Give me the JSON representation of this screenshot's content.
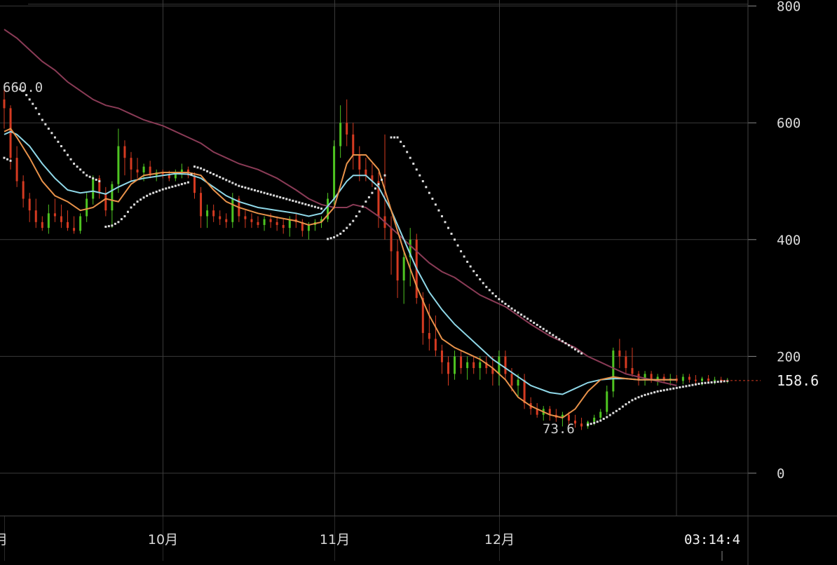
{
  "chart_data": {
    "type": "candlestick",
    "yticks": [
      0,
      200,
      400,
      600,
      800
    ],
    "ylim": [
      0,
      800
    ],
    "xticks": [
      {
        "label": "月",
        "i": 0
      },
      {
        "label": "10月",
        "i": 25
      },
      {
        "label": "11月",
        "i": 52
      },
      {
        "label": "12月",
        "i": 78
      }
    ],
    "time_label": "03:14:4",
    "last_price": "158.6",
    "max_label": "660.0",
    "min_label": "73.6",
    "colors": {
      "up": "#4ec421",
      "down": "#d53a21",
      "ma_short": "#e8924a",
      "ma_mid": "#8fd8e8",
      "ma_long": "#8a3b56",
      "sar": "#dcdcdc",
      "grid": "#3a3a3a"
    },
    "ohlc": [
      [
        640,
        660,
        590,
        625
      ],
      [
        625,
        630,
        520,
        540
      ],
      [
        540,
        560,
        490,
        500
      ],
      [
        500,
        510,
        455,
        470
      ],
      [
        470,
        480,
        430,
        450
      ],
      [
        450,
        470,
        420,
        430
      ],
      [
        430,
        440,
        415,
        420
      ],
      [
        420,
        460,
        410,
        445
      ],
      [
        445,
        470,
        430,
        440
      ],
      [
        440,
        460,
        420,
        430
      ],
      [
        430,
        450,
        415,
        420
      ],
      [
        420,
        440,
        410,
        415
      ],
      [
        415,
        445,
        410,
        440
      ],
      [
        440,
        480,
        430,
        470
      ],
      [
        470,
        510,
        460,
        505
      ],
      [
        505,
        510,
        470,
        480
      ],
      [
        480,
        490,
        440,
        450
      ],
      [
        450,
        500,
        420,
        495
      ],
      [
        495,
        590,
        480,
        560
      ],
      [
        560,
        570,
        510,
        540
      ],
      [
        540,
        550,
        500,
        520
      ],
      [
        520,
        540,
        505,
        515
      ],
      [
        515,
        530,
        500,
        525
      ],
      [
        525,
        535,
        505,
        510
      ],
      [
        510,
        520,
        500,
        515
      ],
      [
        515,
        520,
        505,
        512
      ],
      [
        512,
        518,
        500,
        505
      ],
      [
        505,
        520,
        500,
        515
      ],
      [
        515,
        530,
        505,
        520
      ],
      [
        520,
        525,
        505,
        510
      ],
      [
        510,
        515,
        470,
        480
      ],
      [
        480,
        490,
        420,
        440
      ],
      [
        440,
        460,
        420,
        450
      ],
      [
        450,
        460,
        430,
        440
      ],
      [
        440,
        450,
        425,
        435
      ],
      [
        435,
        445,
        420,
        430
      ],
      [
        430,
        480,
        420,
        470
      ],
      [
        470,
        475,
        430,
        440
      ],
      [
        440,
        450,
        420,
        435
      ],
      [
        435,
        445,
        420,
        430
      ],
      [
        430,
        440,
        420,
        425
      ],
      [
        425,
        440,
        415,
        435
      ],
      [
        435,
        445,
        420,
        430
      ],
      [
        430,
        440,
        415,
        425
      ],
      [
        425,
        435,
        410,
        420
      ],
      [
        420,
        440,
        405,
        435
      ],
      [
        435,
        445,
        420,
        430
      ],
      [
        430,
        435,
        405,
        415
      ],
      [
        415,
        430,
        400,
        425
      ],
      [
        425,
        435,
        415,
        430
      ],
      [
        430,
        440,
        420,
        435
      ],
      [
        435,
        480,
        430,
        470
      ],
      [
        470,
        570,
        460,
        560
      ],
      [
        560,
        630,
        540,
        600
      ],
      [
        600,
        640,
        560,
        580
      ],
      [
        580,
        600,
        520,
        545
      ],
      [
        545,
        560,
        500,
        520
      ],
      [
        520,
        540,
        500,
        510
      ],
      [
        510,
        530,
        490,
        500
      ],
      [
        500,
        515,
        420,
        440
      ],
      [
        440,
        580,
        400,
        420
      ],
      [
        420,
        440,
        340,
        380
      ],
      [
        380,
        400,
        300,
        330
      ],
      [
        330,
        380,
        290,
        370
      ],
      [
        370,
        420,
        320,
        400
      ],
      [
        400,
        410,
        290,
        300
      ],
      [
        300,
        310,
        220,
        240
      ],
      [
        240,
        290,
        210,
        230
      ],
      [
        230,
        270,
        200,
        210
      ],
      [
        210,
        220,
        170,
        190
      ],
      [
        190,
        200,
        150,
        170
      ],
      [
        170,
        210,
        160,
        200
      ],
      [
        200,
        210,
        170,
        180
      ],
      [
        180,
        200,
        160,
        190
      ],
      [
        190,
        200,
        170,
        180
      ],
      [
        180,
        200,
        160,
        190
      ],
      [
        190,
        200,
        170,
        180
      ],
      [
        180,
        200,
        150,
        170
      ],
      [
        170,
        210,
        150,
        200
      ],
      [
        200,
        210,
        160,
        170
      ],
      [
        170,
        180,
        140,
        150
      ],
      [
        150,
        170,
        130,
        160
      ],
      [
        160,
        170,
        110,
        120
      ],
      [
        120,
        130,
        100,
        110
      ],
      [
        110,
        120,
        95,
        100
      ],
      [
        100,
        115,
        90,
        110
      ],
      [
        110,
        115,
        90,
        100
      ],
      [
        100,
        110,
        88,
        95
      ],
      [
        95,
        105,
        80,
        100
      ],
      [
        100,
        105,
        80,
        90
      ],
      [
        90,
        100,
        78,
        85
      ],
      [
        85,
        95,
        74,
        80
      ],
      [
        80,
        90,
        76,
        88
      ],
      [
        88,
        100,
        82,
        95
      ],
      [
        95,
        110,
        90,
        105
      ],
      [
        105,
        150,
        100,
        140
      ],
      [
        140,
        215,
        130,
        210
      ],
      [
        210,
        230,
        180,
        200
      ],
      [
        200,
        210,
        170,
        180
      ],
      [
        180,
        215,
        165,
        170
      ],
      [
        170,
        175,
        150,
        160
      ],
      [
        160,
        175,
        150,
        170
      ],
      [
        170,
        175,
        155,
        160
      ],
      [
        160,
        170,
        150,
        165
      ],
      [
        165,
        170,
        155,
        160
      ],
      [
        160,
        170,
        150,
        162
      ],
      [
        162,
        168,
        155,
        158
      ],
      [
        158,
        170,
        152,
        165
      ],
      [
        165,
        170,
        155,
        160
      ],
      [
        160,
        168,
        152,
        158
      ],
      [
        158,
        165,
        150,
        162
      ],
      [
        162,
        168,
        155,
        158
      ],
      [
        158,
        165,
        152,
        160
      ],
      [
        160,
        165,
        154,
        158
      ],
      [
        158,
        163,
        154,
        158.6
      ]
    ],
    "ma_short": [
      [
        0,
        585
      ],
      [
        1,
        590
      ],
      [
        2,
        575
      ],
      [
        4,
        540
      ],
      [
        6,
        500
      ],
      [
        8,
        475
      ],
      [
        10,
        465
      ],
      [
        12,
        450
      ],
      [
        14,
        455
      ],
      [
        16,
        470
      ],
      [
        18,
        465
      ],
      [
        20,
        495
      ],
      [
        22,
        510
      ],
      [
        25,
        515
      ],
      [
        27,
        515
      ],
      [
        29,
        515
      ],
      [
        31,
        510
      ],
      [
        33,
        485
      ],
      [
        35,
        465
      ],
      [
        37,
        455
      ],
      [
        40,
        445
      ],
      [
        43,
        438
      ],
      [
        46,
        432
      ],
      [
        48,
        425
      ],
      [
        50,
        430
      ],
      [
        52,
        455
      ],
      [
        54,
        530
      ],
      [
        55,
        545
      ],
      [
        57,
        545
      ],
      [
        59,
        520
      ],
      [
        61,
        450
      ],
      [
        63,
        380
      ],
      [
        65,
        320
      ],
      [
        67,
        270
      ],
      [
        69,
        230
      ],
      [
        71,
        215
      ],
      [
        73,
        205
      ],
      [
        75,
        195
      ],
      [
        77,
        180
      ],
      [
        79,
        160
      ],
      [
        81,
        130
      ],
      [
        83,
        115
      ],
      [
        86,
        100
      ],
      [
        88,
        95
      ],
      [
        90,
        110
      ],
      [
        92,
        140
      ],
      [
        94,
        160
      ],
      [
        96,
        165
      ],
      [
        98,
        162
      ],
      [
        100,
        160
      ],
      [
        102,
        160
      ],
      [
        104,
        160
      ],
      [
        106,
        160
      ]
    ],
    "ma_mid": [
      [
        0,
        580
      ],
      [
        1,
        585
      ],
      [
        2,
        580
      ],
      [
        4,
        560
      ],
      [
        6,
        530
      ],
      [
        8,
        505
      ],
      [
        10,
        485
      ],
      [
        12,
        480
      ],
      [
        14,
        483
      ],
      [
        16,
        478
      ],
      [
        18,
        490
      ],
      [
        20,
        500
      ],
      [
        22,
        505
      ],
      [
        25,
        510
      ],
      [
        27,
        513
      ],
      [
        29,
        512
      ],
      [
        31,
        505
      ],
      [
        33,
        490
      ],
      [
        35,
        475
      ],
      [
        37,
        465
      ],
      [
        40,
        455
      ],
      [
        43,
        450
      ],
      [
        46,
        445
      ],
      [
        48,
        440
      ],
      [
        50,
        445
      ],
      [
        52,
        470
      ],
      [
        54,
        500
      ],
      [
        55,
        510
      ],
      [
        57,
        510
      ],
      [
        59,
        490
      ],
      [
        61,
        450
      ],
      [
        63,
        400
      ],
      [
        65,
        350
      ],
      [
        67,
        310
      ],
      [
        69,
        280
      ],
      [
        71,
        255
      ],
      [
        73,
        235
      ],
      [
        75,
        215
      ],
      [
        77,
        195
      ],
      [
        79,
        180
      ],
      [
        81,
        165
      ],
      [
        83,
        150
      ],
      [
        86,
        138
      ],
      [
        88,
        135
      ],
      [
        90,
        145
      ],
      [
        92,
        155
      ],
      [
        94,
        160
      ],
      [
        96,
        162
      ],
      [
        98,
        162
      ],
      [
        100,
        160
      ],
      [
        102,
        160
      ],
      [
        104,
        160
      ],
      [
        106,
        160
      ]
    ],
    "ma_long": [
      [
        0,
        760
      ],
      [
        2,
        745
      ],
      [
        4,
        725
      ],
      [
        6,
        705
      ],
      [
        8,
        690
      ],
      [
        10,
        670
      ],
      [
        12,
        655
      ],
      [
        14,
        640
      ],
      [
        16,
        630
      ],
      [
        18,
        625
      ],
      [
        20,
        615
      ],
      [
        22,
        605
      ],
      [
        25,
        595
      ],
      [
        27,
        585
      ],
      [
        29,
        575
      ],
      [
        31,
        565
      ],
      [
        33,
        550
      ],
      [
        35,
        540
      ],
      [
        37,
        530
      ],
      [
        40,
        520
      ],
      [
        43,
        505
      ],
      [
        46,
        485
      ],
      [
        48,
        470
      ],
      [
        50,
        460
      ],
      [
        52,
        455
      ],
      [
        54,
        455
      ],
      [
        55,
        460
      ],
      [
        57,
        455
      ],
      [
        59,
        440
      ],
      [
        61,
        420
      ],
      [
        63,
        400
      ],
      [
        65,
        380
      ],
      [
        67,
        360
      ],
      [
        69,
        345
      ],
      [
        71,
        335
      ],
      [
        73,
        320
      ],
      [
        75,
        305
      ],
      [
        77,
        295
      ],
      [
        79,
        285
      ],
      [
        81,
        270
      ],
      [
        83,
        255
      ],
      [
        86,
        235
      ],
      [
        88,
        225
      ],
      [
        90,
        215
      ],
      [
        92,
        200
      ],
      [
        94,
        190
      ],
      [
        96,
        180
      ],
      [
        98,
        170
      ],
      [
        100,
        165
      ],
      [
        102,
        160
      ],
      [
        104,
        155
      ],
      [
        106,
        150
      ]
    ],
    "sar": [
      [
        0,
        540
      ],
      [
        1,
        535
      ],
      [
        2,
        660
      ],
      [
        3,
        655
      ],
      [
        4,
        640
      ],
      [
        5,
        625
      ],
      [
        6,
        605
      ],
      [
        7,
        590
      ],
      [
        8,
        575
      ],
      [
        9,
        560
      ],
      [
        10,
        545
      ],
      [
        11,
        530
      ],
      [
        12,
        520
      ],
      [
        13,
        510
      ],
      [
        14,
        505
      ],
      [
        15,
        500
      ],
      [
        16,
        422
      ],
      [
        17,
        424
      ],
      [
        18,
        430
      ],
      [
        19,
        440
      ],
      [
        20,
        455
      ],
      [
        21,
        465
      ],
      [
        22,
        472
      ],
      [
        23,
        478
      ],
      [
        24,
        482
      ],
      [
        25,
        486
      ],
      [
        26,
        489
      ],
      [
        27,
        492
      ],
      [
        28,
        495
      ],
      [
        29,
        498
      ],
      [
        30,
        525
      ],
      [
        31,
        522
      ],
      [
        32,
        517
      ],
      [
        33,
        512
      ],
      [
        34,
        507
      ],
      [
        35,
        502
      ],
      [
        36,
        497
      ],
      [
        37,
        492
      ],
      [
        38,
        489
      ],
      [
        39,
        486
      ],
      [
        40,
        483
      ],
      [
        41,
        480
      ],
      [
        42,
        477
      ],
      [
        43,
        474
      ],
      [
        44,
        471
      ],
      [
        45,
        468
      ],
      [
        46,
        465
      ],
      [
        47,
        462
      ],
      [
        48,
        459
      ],
      [
        49,
        456
      ],
      [
        50,
        453
      ],
      [
        51,
        401
      ],
      [
        52,
        404
      ],
      [
        53,
        410
      ],
      [
        54,
        420
      ],
      [
        55,
        432
      ],
      [
        56,
        448
      ],
      [
        57,
        465
      ],
      [
        58,
        480
      ],
      [
        59,
        495
      ],
      [
        60,
        510
      ],
      [
        61,
        575
      ],
      [
        62,
        575
      ],
      [
        63,
        560
      ],
      [
        64,
        540
      ],
      [
        65,
        520
      ],
      [
        66,
        500
      ],
      [
        67,
        480
      ],
      [
        68,
        460
      ],
      [
        69,
        440
      ],
      [
        70,
        420
      ],
      [
        71,
        400
      ],
      [
        72,
        380
      ],
      [
        73,
        362
      ],
      [
        74,
        346
      ],
      [
        75,
        332
      ],
      [
        76,
        319
      ],
      [
        77,
        308
      ],
      [
        78,
        298
      ],
      [
        79,
        290
      ],
      [
        80,
        282
      ],
      [
        81,
        275
      ],
      [
        82,
        268
      ],
      [
        83,
        261
      ],
      [
        84,
        254
      ],
      [
        85,
        247
      ],
      [
        86,
        240
      ],
      [
        87,
        233
      ],
      [
        88,
        226
      ],
      [
        89,
        219
      ],
      [
        90,
        212
      ],
      [
        91,
        205
      ],
      [
        92,
        83
      ],
      [
        93,
        86
      ],
      [
        94,
        90
      ],
      [
        95,
        96
      ],
      [
        96,
        103
      ],
      [
        97,
        110
      ],
      [
        98,
        118
      ],
      [
        99,
        125
      ],
      [
        100,
        130
      ],
      [
        101,
        134
      ],
      [
        102,
        137
      ],
      [
        103,
        140
      ],
      [
        104,
        142
      ],
      [
        105,
        144
      ],
      [
        106,
        146
      ],
      [
        107,
        148
      ],
      [
        108,
        150
      ],
      [
        109,
        152
      ],
      [
        110,
        154
      ],
      [
        111,
        155
      ],
      [
        112,
        156
      ],
      [
        113,
        157
      ],
      [
        114,
        158
      ]
    ]
  }
}
